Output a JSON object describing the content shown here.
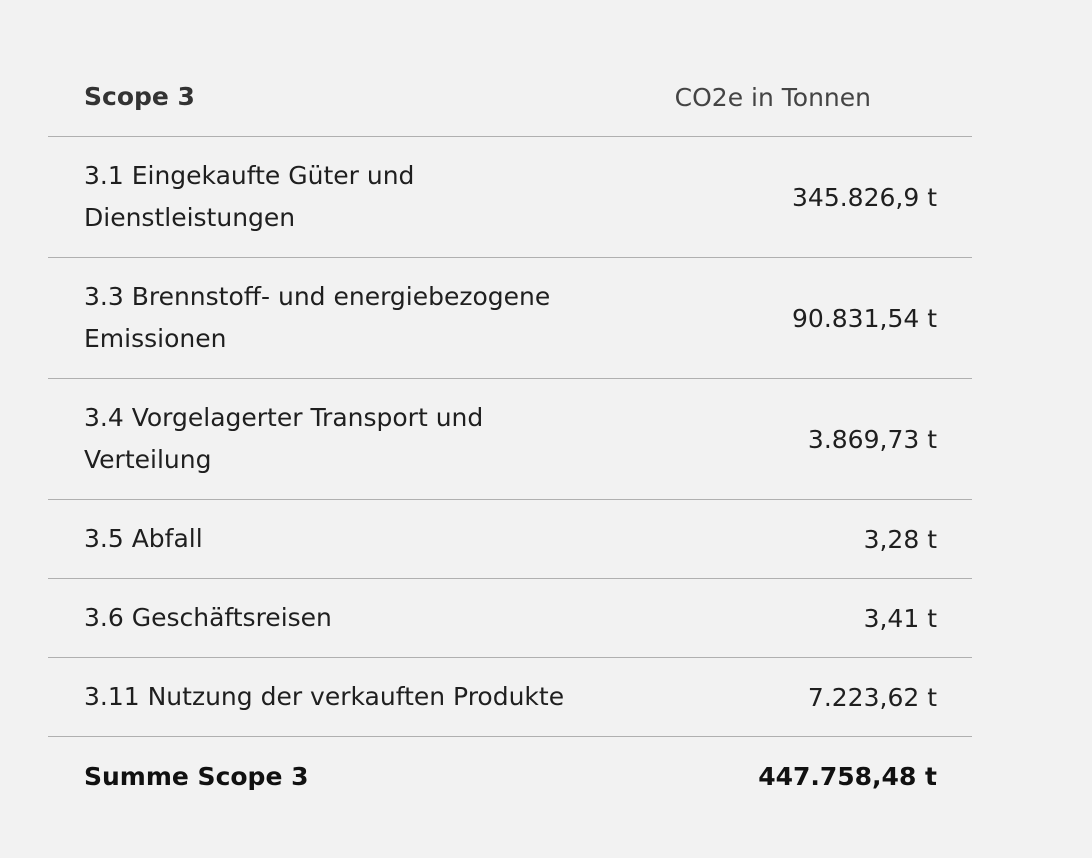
{
  "table": {
    "header": {
      "label": "Scope 3",
      "value": "CO2e in Tonnen"
    },
    "rows": [
      {
        "label": "3.1 Eingekaufte Güter und Dienstleistungen",
        "value": "345.826,9 t"
      },
      {
        "label": "3.3 Brennstoff- und energiebezogene Emissionen",
        "value": "90.831,54 t"
      },
      {
        "label": "3.4 Vorgelagerter Transport und Verteilung",
        "value": "3.869,73 t"
      },
      {
        "label": "3.5 Abfall",
        "value": "3,28 t"
      },
      {
        "label": "3.6 Geschäftsreisen",
        "value": "3,41 t"
      },
      {
        "label": "3.11 Nutzung der verkauften Produkte",
        "value": "7.223,62 t"
      }
    ],
    "total": {
      "label": "Summe Scope 3",
      "value": "447.758,48 t"
    }
  }
}
